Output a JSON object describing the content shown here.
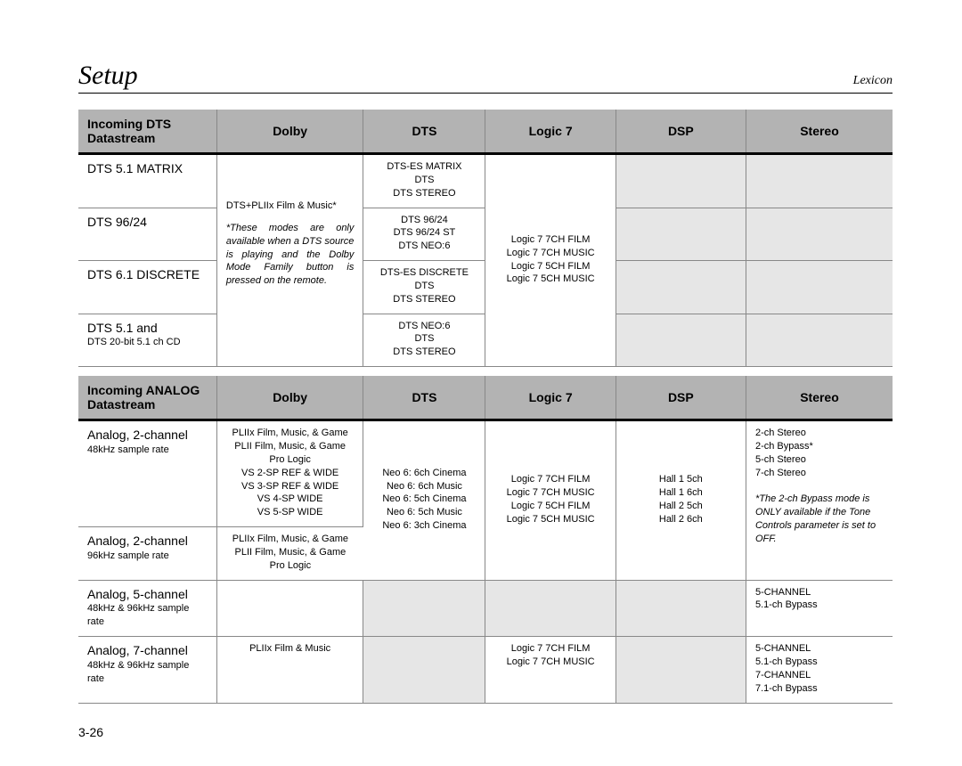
{
  "header": {
    "title": "Setup",
    "brand": "Lexicon"
  },
  "pageNumber": "3-26",
  "colors": {
    "headerBg": "#b3b3b3",
    "shadedCell": "#e6e6e6",
    "border": "#888888"
  },
  "table1": {
    "columns": [
      "Incoming DTS Datastream",
      "Dolby",
      "DTS",
      "Logic 7",
      "DSP",
      "Stereo"
    ],
    "dolbyMergedNote": "DTS+PLIIx Film & Music*\n\n*These modes are only available when a DTS source is playing and the Dolby Mode Family button is pressed on the remote.",
    "logic7Merged": "Logic 7 7CH FILM\nLogic 7 7CH MUSIC\nLogic 7 5CH FILM\nLogic 7 5CH MUSIC",
    "rows": [
      {
        "label": "DTS 5.1 MATRIX",
        "dts": "DTS-ES MATRIX\nDTS\nDTS STEREO"
      },
      {
        "label": "DTS 96/24",
        "dts": "DTS 96/24\nDTS 96/24 ST\nDTS NEO:6"
      },
      {
        "label": "DTS 6.1 DISCRETE",
        "dts": "DTS-ES DISCRETE\nDTS\nDTS STEREO"
      },
      {
        "label": "DTS 5.1 and",
        "sub": "DTS 20-bit 5.1 ch CD",
        "dts": "DTS NEO:6\nDTS\nDTS STEREO"
      }
    ]
  },
  "table2": {
    "columns": [
      "Incoming ANALOG Datastream",
      "Dolby",
      "DTS",
      "Logic 7",
      "DSP",
      "Stereo"
    ],
    "dtsMerged": "Neo 6: 6ch Cinema\nNeo 6: 6ch Music\nNeo 6: 5ch Cinema\nNeo 6: 5ch Music\nNeo 6: 3ch Cinema",
    "logic7Merged12": "Logic 7 7CH FILM\nLogic 7 7CH MUSIC\nLogic 7 5CH FILM\nLogic 7 5CH MUSIC",
    "dspMerged12": "Hall 1 5ch\nHall 1 6ch\nHall 2 5ch\nHall 2 6ch",
    "stereoMerged12": "2-ch Stereo\n2-ch Bypass*\n5-ch Stereo\n7-ch Stereo",
    "stereoNote": "*The 2-ch Bypass mode is ONLY available if the Tone Controls parameter is set to OFF.",
    "rows": [
      {
        "label": "Analog, 2-channel",
        "sub": "48kHz sample rate",
        "dolby": "PLIIx Film, Music, & Game\nPLII Film, Music, & Game\nPro Logic\nVS 2-SP REF & WIDE\nVS 3-SP REF & WIDE\nVS 4-SP WIDE\nVS 5-SP WIDE"
      },
      {
        "label": "Analog, 2-channel",
        "sub": "96kHz sample rate",
        "dolby": "PLIIx Film, Music, & Game\nPLII Film, Music, & Game\nPro Logic"
      },
      {
        "label": "Analog, 5-channel",
        "sub": "48kHz & 96kHz sample rate",
        "dolby": "",
        "logic7": "",
        "stereo": "5-CHANNEL\n5.1-ch Bypass"
      },
      {
        "label": "Analog, 7-channel",
        "sub": "48kHz & 96kHz sample rate",
        "dolby": "PLIIx Film & Music",
        "logic7": "Logic 7 7CH FILM\nLogic 7 7CH MUSIC",
        "stereo": "5-CHANNEL\n5.1-ch Bypass\n7-CHANNEL\n7.1-ch Bypass"
      }
    ]
  }
}
